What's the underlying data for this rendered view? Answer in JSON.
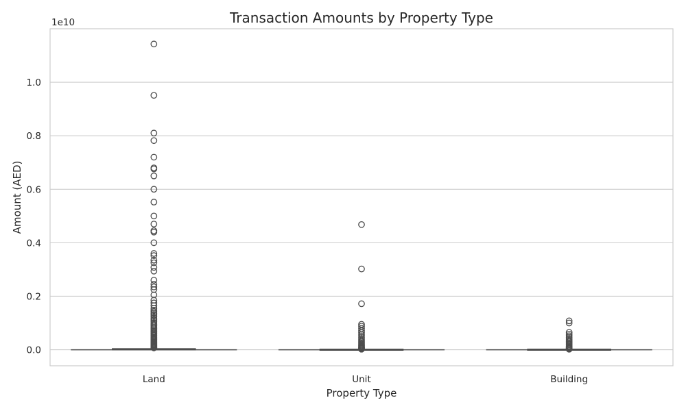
{
  "chart_data": {
    "type": "box",
    "title": "Transaction Amounts by Property Type",
    "xlabel": "Property Type",
    "ylabel": "Amount (AED)",
    "y_offset_label": "1e10",
    "y_scale": 10000000000,
    "ylim": [
      -0.06,
      1.2
    ],
    "yticks": [
      0.0,
      0.2,
      0.4,
      0.6,
      0.8,
      1.0
    ],
    "ytick_labels": [
      "0.0",
      "0.2",
      "0.4",
      "0.6",
      "0.8",
      "1.0"
    ],
    "grid": "horizontal",
    "legend": "none",
    "categories": [
      "Land",
      "Unit",
      "Building"
    ],
    "boxes": [
      {
        "category": "Land",
        "q1": 0.0008,
        "median": 0.0015,
        "q3": 0.003,
        "whisker_low": 0.0,
        "whisker_high": 0.0055,
        "outliers": [
          1.143,
          0.951,
          0.81,
          0.782,
          0.72,
          0.68,
          0.676,
          0.65,
          0.6,
          0.552,
          0.5,
          0.47,
          0.445,
          0.44,
          0.4,
          0.36,
          0.352,
          0.335,
          0.325,
          0.308,
          0.294,
          0.26,
          0.245,
          0.235,
          0.225,
          0.205,
          0.185,
          0.175,
          0.165,
          0.155,
          0.148,
          0.142,
          0.136,
          0.13,
          0.124,
          0.118,
          0.112,
          0.106,
          0.1,
          0.095,
          0.09,
          0.085,
          0.08,
          0.075,
          0.07,
          0.066,
          0.062,
          0.058,
          0.054,
          0.05,
          0.046,
          0.042,
          0.038,
          0.034,
          0.03,
          0.027,
          0.024,
          0.021,
          0.018,
          0.015,
          0.012,
          0.009,
          0.007
        ]
      },
      {
        "category": "Unit",
        "q1": 0.0001,
        "median": 0.0001,
        "q3": 0.0002,
        "whisker_low": 0.0,
        "whisker_high": 0.0004,
        "outliers": [
          0.468,
          0.302,
          0.172,
          0.095,
          0.088,
          0.08,
          0.072,
          0.065,
          0.058,
          0.052,
          0.046,
          0.04,
          0.035,
          0.03,
          0.026,
          0.022,
          0.018,
          0.015,
          0.012,
          0.009,
          0.007,
          0.005,
          0.003,
          0.002
        ]
      },
      {
        "category": "Building",
        "q1": 0.0001,
        "median": 0.0002,
        "q3": 0.0004,
        "whisker_low": 0.0,
        "whisker_high": 0.0008,
        "outliers": [
          0.108,
          0.1,
          0.065,
          0.058,
          0.052,
          0.046,
          0.04,
          0.035,
          0.03,
          0.026,
          0.022,
          0.018,
          0.014,
          0.011,
          0.008,
          0.006,
          0.004,
          0.002
        ]
      }
    ],
    "colors": {
      "box_line": "#4c4c4c",
      "grid": "#cccccc",
      "axes_edge": "#cccccc",
      "text": "#262626"
    }
  }
}
